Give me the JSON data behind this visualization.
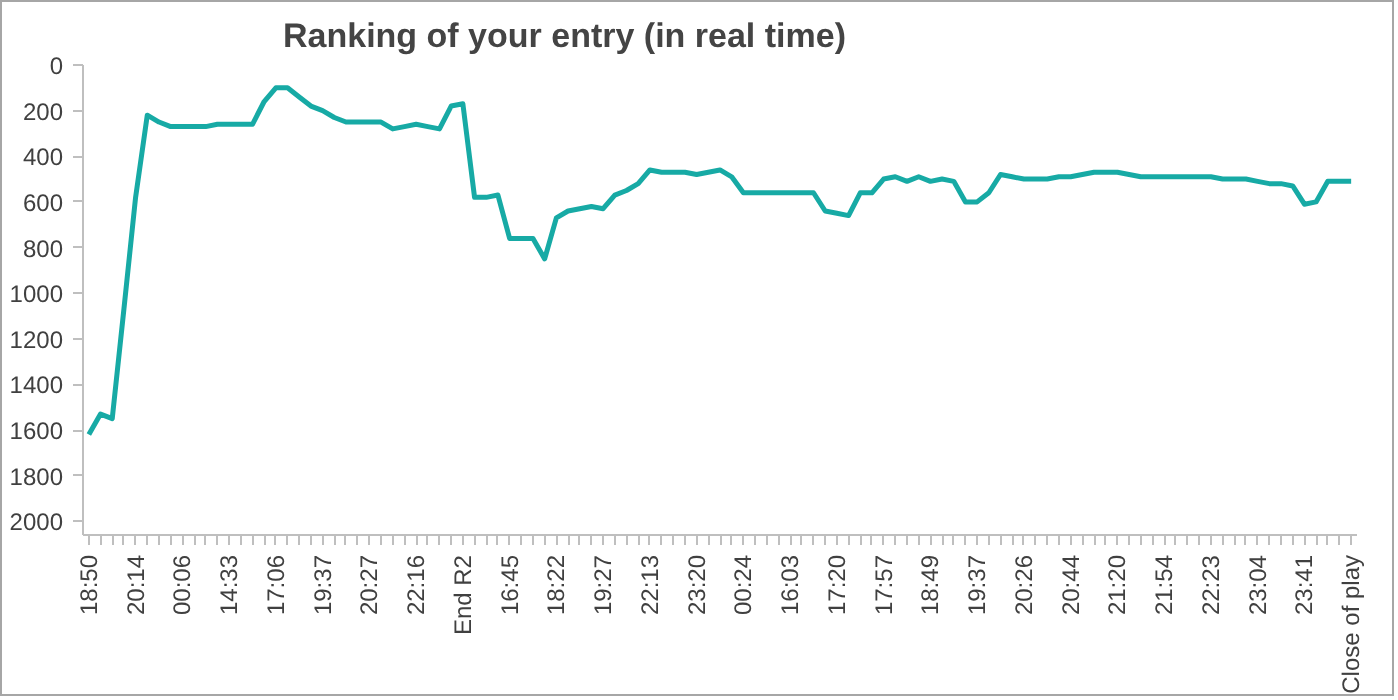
{
  "chart_data": {
    "type": "line",
    "title": "Ranking of your entry (in real time)",
    "categories": [
      "18:50",
      null,
      null,
      null,
      "20:14",
      null,
      null,
      null,
      "00:06",
      null,
      null,
      null,
      "14:33",
      null,
      null,
      null,
      "17:06",
      null,
      null,
      null,
      "19:37",
      null,
      null,
      null,
      "20:27",
      null,
      null,
      null,
      "22:16",
      null,
      null,
      null,
      "End R2",
      null,
      null,
      null,
      "16:45",
      null,
      null,
      null,
      "18:22",
      null,
      null,
      null,
      "19:27",
      null,
      null,
      null,
      "22:13",
      null,
      null,
      null,
      "23:20",
      null,
      null,
      null,
      "00:24",
      null,
      null,
      null,
      "16:03",
      null,
      null,
      null,
      "17:20",
      null,
      null,
      null,
      "17:57",
      null,
      null,
      null,
      "18:49",
      null,
      null,
      null,
      "19:37",
      null,
      null,
      null,
      "20:26",
      null,
      null,
      null,
      "20:44",
      null,
      null,
      null,
      "21:20",
      null,
      null,
      null,
      "21:54",
      null,
      null,
      null,
      "22:23",
      null,
      null,
      null,
      "23:04",
      null,
      null,
      null,
      "23:41",
      null,
      null,
      null,
      "Close of play"
    ],
    "series": [
      {
        "color": "#17aaa5",
        "values": [
          1620,
          1530,
          1550,
          1070,
          580,
          220,
          250,
          270,
          270,
          270,
          270,
          260,
          260,
          260,
          260,
          160,
          100,
          100,
          140,
          180,
          200,
          230,
          250,
          250,
          250,
          250,
          280,
          270,
          260,
          270,
          280,
          180,
          170,
          580,
          580,
          570,
          760,
          760,
          760,
          850,
          670,
          640,
          630,
          620,
          630,
          570,
          550,
          520,
          460,
          470,
          470,
          470,
          480,
          470,
          460,
          490,
          560,
          560,
          560,
          560,
          560,
          560,
          560,
          640,
          650,
          660,
          560,
          560,
          500,
          490,
          510,
          490,
          510,
          500,
          510,
          600,
          600,
          560,
          480,
          490,
          500,
          500,
          500,
          490,
          490,
          480,
          470,
          470,
          470,
          480,
          490,
          490,
          490,
          490,
          490,
          490,
          490,
          500,
          500,
          500,
          510,
          520,
          520,
          530,
          610,
          600,
          510,
          510,
          510
        ]
      }
    ],
    "ylim": [
      2060,
      0
    ],
    "yticks": [
      0,
      200,
      400,
      600,
      800,
      1000,
      1200,
      1400,
      1600,
      1800,
      2000
    ],
    "grid": false,
    "marker": "none",
    "line_style": "solid"
  }
}
